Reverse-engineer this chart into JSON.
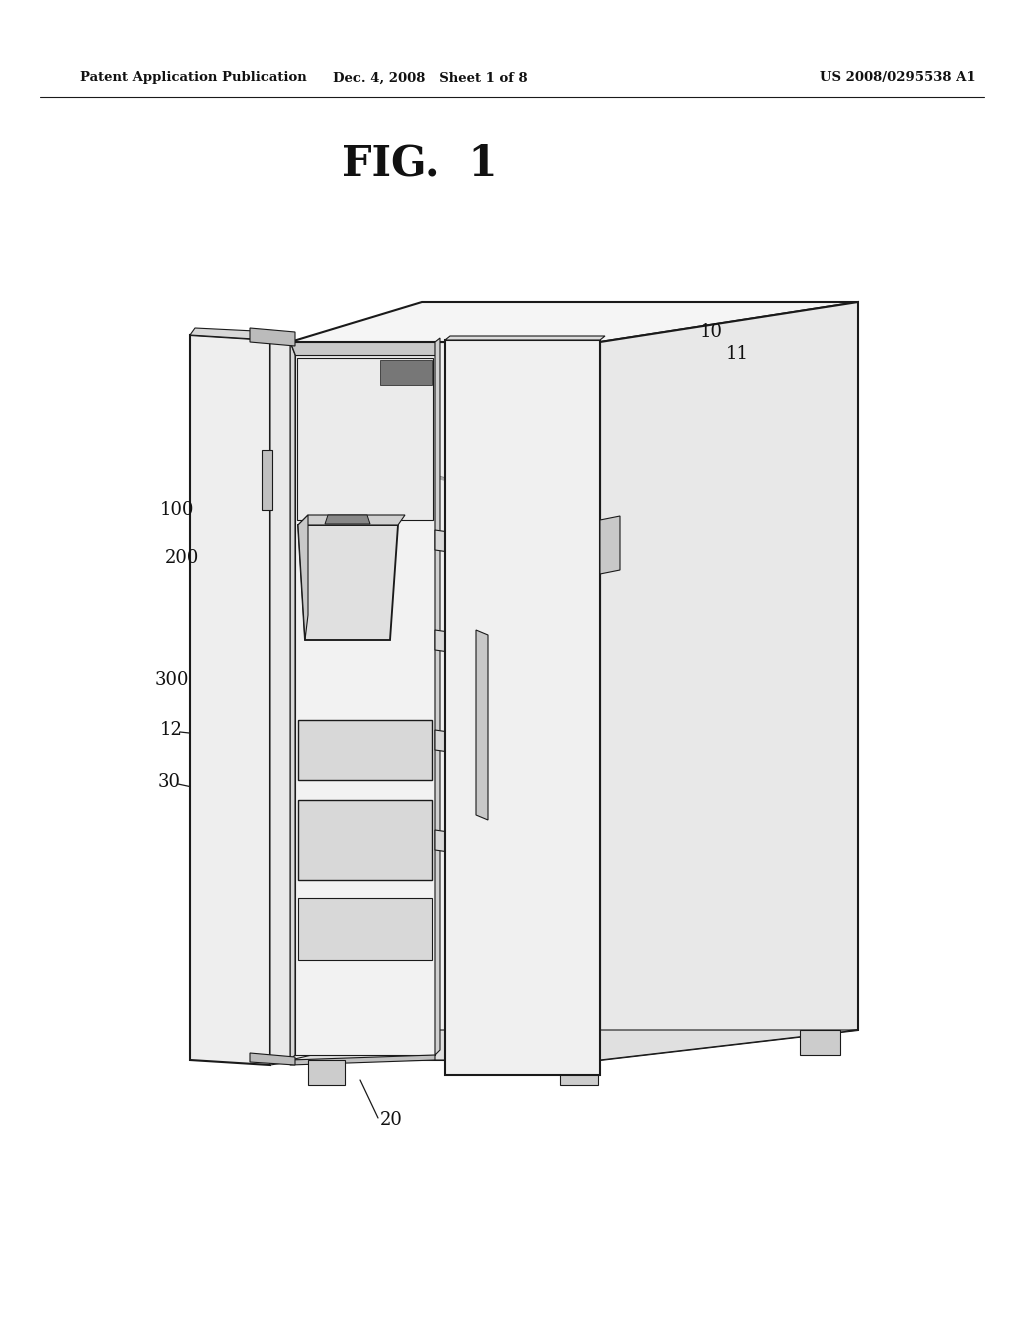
{
  "header_left": "Patent Application Publication",
  "header_mid": "Dec. 4, 2008   Sheet 1 of 8",
  "header_right": "US 2008/0295538 A1",
  "fig_title": "FIG.  1",
  "bg_color": "#ffffff",
  "line_color": "#1a1a1a",
  "lw_main": 1.5,
  "lw_thin": 0.8,
  "lw_leader": 0.9
}
